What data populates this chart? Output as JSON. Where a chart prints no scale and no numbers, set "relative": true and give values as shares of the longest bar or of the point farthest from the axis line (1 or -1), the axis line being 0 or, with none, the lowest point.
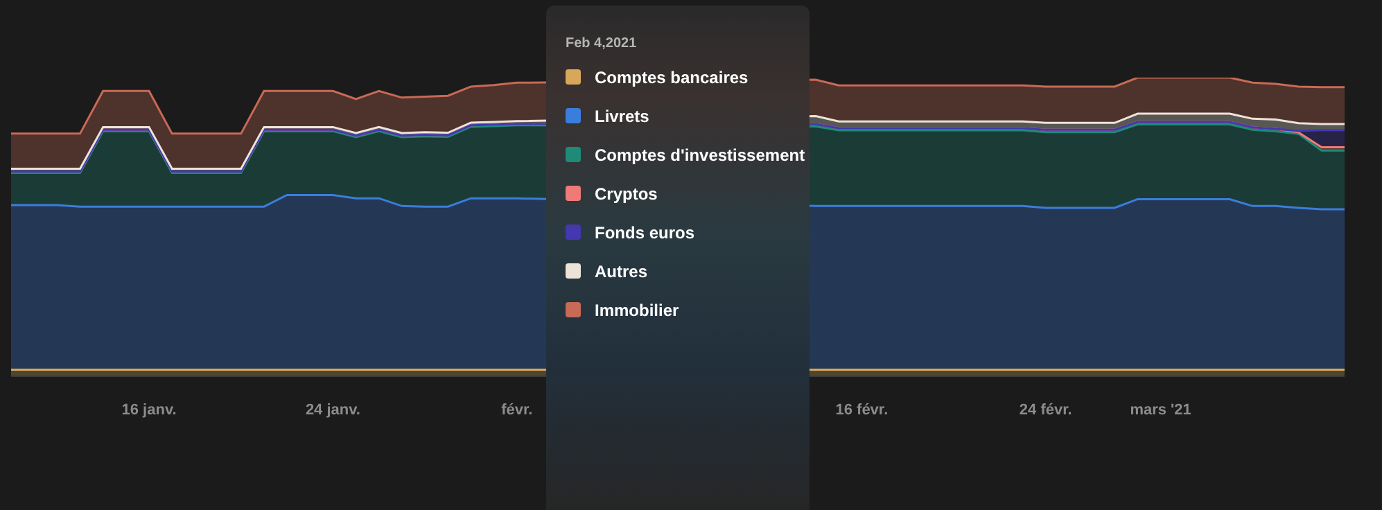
{
  "chart_data": {
    "type": "area",
    "stacked": true,
    "relative": true,
    "legend": "top",
    "legend_title": "Feb 4,2021",
    "x": [
      "2021-01-10",
      "2021-01-11",
      "2021-01-12",
      "2021-01-13",
      "2021-01-14",
      "2021-01-15",
      "2021-01-16",
      "2021-01-17",
      "2021-01-18",
      "2021-01-19",
      "2021-01-20",
      "2021-01-21",
      "2021-01-22",
      "2021-01-23",
      "2021-01-24",
      "2021-01-25",
      "2021-01-26",
      "2021-01-27",
      "2021-01-28",
      "2021-01-29",
      "2021-01-30",
      "2021-01-31",
      "2021-02-01",
      "2021-02-02",
      "2021-02-03",
      "2021-02-04",
      "2021-02-05",
      "2021-02-06",
      "2021-02-07",
      "2021-02-08",
      "2021-02-09",
      "2021-02-10",
      "2021-02-11",
      "2021-02-12",
      "2021-02-13",
      "2021-02-14",
      "2021-02-15",
      "2021-02-16",
      "2021-02-17",
      "2021-02-18",
      "2021-02-19",
      "2021-02-20",
      "2021-02-21",
      "2021-02-22",
      "2021-02-23",
      "2021-02-24",
      "2021-02-25",
      "2021-02-26",
      "2021-02-27",
      "2021-02-28",
      "2021-03-01",
      "2021-03-02",
      "2021-03-03",
      "2021-03-04",
      "2021-03-05",
      "2021-03-06",
      "2021-03-07",
      "2021-03-08",
      "2021-03-09"
    ],
    "xticks": [
      {
        "value": "2021-01-16",
        "label": "16 janv."
      },
      {
        "value": "2021-01-24",
        "label": "24 janv."
      },
      {
        "value": "2021-02-01",
        "label": "févr."
      },
      {
        "value": "2021-02-16",
        "label": "16 févr."
      },
      {
        "value": "2021-02-24",
        "label": "24 févr."
      },
      {
        "value": "2021-03-01",
        "label": "mars '21"
      }
    ],
    "xlim": [
      "2021-01-10",
      "2021-03-09"
    ],
    "series": [
      {
        "name": "Comptes bancaires",
        "color": "#d8a85a",
        "values": [
          0.02,
          0.02,
          0.02,
          0.02,
          0.02,
          0.02,
          0.02,
          0.02,
          0.02,
          0.02,
          0.02,
          0.02,
          0.02,
          0.02,
          0.02,
          0.02,
          0.02,
          0.02,
          0.02,
          0.02,
          0.02,
          0.02,
          0.02,
          null,
          null,
          null,
          null,
          null,
          null,
          null,
          null,
          null,
          null,
          null,
          null,
          0.02,
          0.02,
          0.02,
          0.02,
          0.02,
          0.02,
          0.02,
          0.02,
          0.02,
          0.02,
          0.02,
          0.02,
          0.02,
          0.02,
          0.02,
          0.02,
          0.02,
          0.02,
          0.02,
          0.02,
          0.02,
          0.02,
          0.02,
          0.02
        ]
      },
      {
        "name": "Livrets",
        "color": "#3b7ddd",
        "values": [
          0.552,
          0.552,
          0.552,
          0.547,
          0.547,
          0.547,
          0.547,
          0.547,
          0.547,
          0.547,
          0.547,
          0.547,
          0.586,
          0.586,
          0.586,
          0.575,
          0.575,
          0.549,
          0.547,
          0.547,
          0.575,
          0.575,
          0.575,
          null,
          null,
          null,
          null,
          null,
          null,
          null,
          null,
          null,
          null,
          null,
          null,
          0.549,
          0.549,
          0.549,
          0.549,
          0.549,
          0.549,
          0.549,
          0.549,
          0.549,
          0.549,
          0.543,
          0.543,
          0.543,
          0.543,
          0.572,
          0.572,
          0.572,
          0.572,
          0.572,
          0.549,
          0.549,
          0.543,
          0.538,
          0.538
        ]
      },
      {
        "name": "Comptes d'investissement",
        "color": "#1f8a78",
        "values": [
          0.108,
          0.108,
          0.108,
          0.113,
          0.253,
          0.253,
          0.253,
          0.113,
          0.113,
          0.113,
          0.113,
          0.253,
          0.214,
          0.214,
          0.214,
          0.205,
          0.225,
          0.231,
          0.236,
          0.234,
          0.24,
          0.242,
          0.245,
          null,
          null,
          null,
          null,
          null,
          null,
          null,
          null,
          null,
          null,
          null,
          null,
          0.267,
          0.254,
          0.254,
          0.254,
          0.254,
          0.254,
          0.254,
          0.254,
          0.254,
          0.254,
          0.254,
          0.254,
          0.254,
          0.254,
          0.251,
          0.251,
          0.251,
          0.251,
          0.251,
          0.256,
          0.251,
          0.248,
          0.197,
          0.197
        ]
      },
      {
        "name": "Cryptos",
        "color": "#ee7b78",
        "values": [
          0.005,
          0.005,
          0.005,
          0.005,
          0.005,
          0.005,
          0.005,
          0.005,
          0.005,
          0.005,
          0.005,
          0.005,
          0.005,
          0.005,
          0.005,
          0.005,
          0.005,
          0.005,
          0.005,
          0.005,
          0.005,
          0.005,
          0.005,
          null,
          null,
          null,
          null,
          null,
          null,
          null,
          null,
          null,
          null,
          null,
          null,
          0.008,
          0.007,
          0.007,
          0.007,
          0.007,
          0.007,
          0.007,
          0.007,
          0.007,
          0.007,
          0.008,
          0.008,
          0.008,
          0.008,
          0.008,
          0.008,
          0.008,
          0.008,
          0.008,
          0.008,
          0.008,
          0.005,
          0.011,
          0.011
        ]
      },
      {
        "name": "Fonds euros",
        "color": "#4338b0",
        "values": [
          0,
          0,
          0,
          0,
          0,
          0,
          0,
          0,
          0,
          0,
          0,
          0,
          0,
          0,
          0,
          0,
          0,
          0,
          0,
          0,
          0,
          0,
          0,
          null,
          null,
          null,
          null,
          null,
          null,
          null,
          null,
          null,
          null,
          null,
          null,
          0,
          0,
          0,
          0,
          0,
          0,
          0,
          0,
          0,
          0,
          0,
          0,
          0,
          0,
          0,
          0,
          0,
          0,
          0,
          0,
          0,
          0.005,
          0.058,
          0.058
        ]
      },
      {
        "name": "Autres",
        "color": "#ece4d8",
        "values": [
          0.009,
          0.009,
          0.009,
          0.009,
          0.009,
          0.009,
          0.009,
          0.009,
          0.009,
          0.009,
          0.009,
          0.009,
          0.009,
          0.009,
          0.009,
          0.009,
          0.009,
          0.009,
          0.009,
          0.009,
          0.009,
          0.009,
          0.009,
          null,
          null,
          null,
          null,
          null,
          null,
          null,
          null,
          null,
          null,
          null,
          null,
          0.027,
          0.023,
          0.023,
          0.023,
          0.023,
          0.023,
          0.023,
          0.023,
          0.023,
          0.023,
          0.023,
          0.023,
          0.023,
          0.023,
          0.028,
          0.028,
          0.028,
          0.028,
          0.028,
          0.029,
          0.031,
          0.026,
          0.02,
          0.02
        ]
      },
      {
        "name": "Immobilier",
        "color": "#c86a55",
        "values": [
          0.118,
          0.118,
          0.118,
          0.118,
          0.121,
          0.121,
          0.121,
          0.118,
          0.118,
          0.118,
          0.118,
          0.121,
          0.121,
          0.121,
          0.121,
          0.114,
          0.121,
          0.119,
          0.119,
          0.124,
          0.121,
          0.124,
          0.129,
          null,
          null,
          null,
          null,
          null,
          null,
          null,
          null,
          null,
          null,
          null,
          null,
          0.122,
          0.121,
          0.121,
          0.121,
          0.121,
          0.121,
          0.121,
          0.121,
          0.121,
          0.121,
          0.122,
          0.122,
          0.122,
          0.122,
          0.121,
          0.121,
          0.121,
          0.121,
          0.121,
          0.121,
          0.12,
          0.123,
          0.124,
          0.124
        ]
      }
    ]
  }
}
